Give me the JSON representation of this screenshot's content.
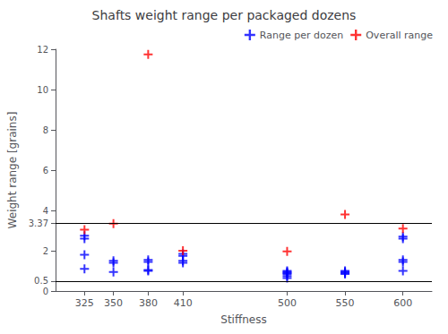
{
  "chart_data": {
    "type": "scatter",
    "title": "Shafts weight range per packaged dozens",
    "xlabel": "Stiffness",
    "ylabel": "Weight range [grains]",
    "xlim": [
      300,
      625
    ],
    "ylim": [
      0,
      12
    ],
    "xticks": [
      325,
      350,
      380,
      410,
      500,
      550,
      600
    ],
    "yticks": [
      0,
      0.5,
      2,
      3.37,
      4,
      6,
      8,
      10,
      12
    ],
    "grid": false,
    "legend": "upper right",
    "hlines": {
      "values": [
        3.37,
        0.5
      ],
      "color": "#000000"
    },
    "series": [
      {
        "name": "Range per dozen",
        "color": "#0000ff",
        "marker": "plus",
        "x": [
          325,
          325,
          325,
          325,
          350,
          350,
          350,
          380,
          380,
          380,
          380,
          410,
          410,
          410,
          410,
          500,
          500,
          500,
          500,
          500,
          500,
          550,
          550,
          550,
          550,
          600,
          600,
          600,
          600,
          600
        ],
        "values": [
          1.1,
          1.8,
          2.6,
          2.75,
          0.95,
          1.4,
          1.5,
          1.0,
          1.05,
          1.45,
          1.55,
          1.4,
          1.5,
          1.75,
          1.85,
          0.65,
          0.75,
          0.85,
          0.9,
          0.95,
          1.0,
          0.85,
          0.9,
          0.95,
          1.0,
          1.0,
          1.45,
          1.55,
          2.6,
          2.7
        ]
      },
      {
        "name": "Overall range",
        "color": "#ff0000",
        "marker": "plus",
        "x": [
          325,
          350,
          380,
          410,
          500,
          550,
          600
        ],
        "values": [
          3.05,
          3.35,
          11.75,
          2.0,
          1.97,
          3.8,
          3.1
        ]
      }
    ]
  }
}
